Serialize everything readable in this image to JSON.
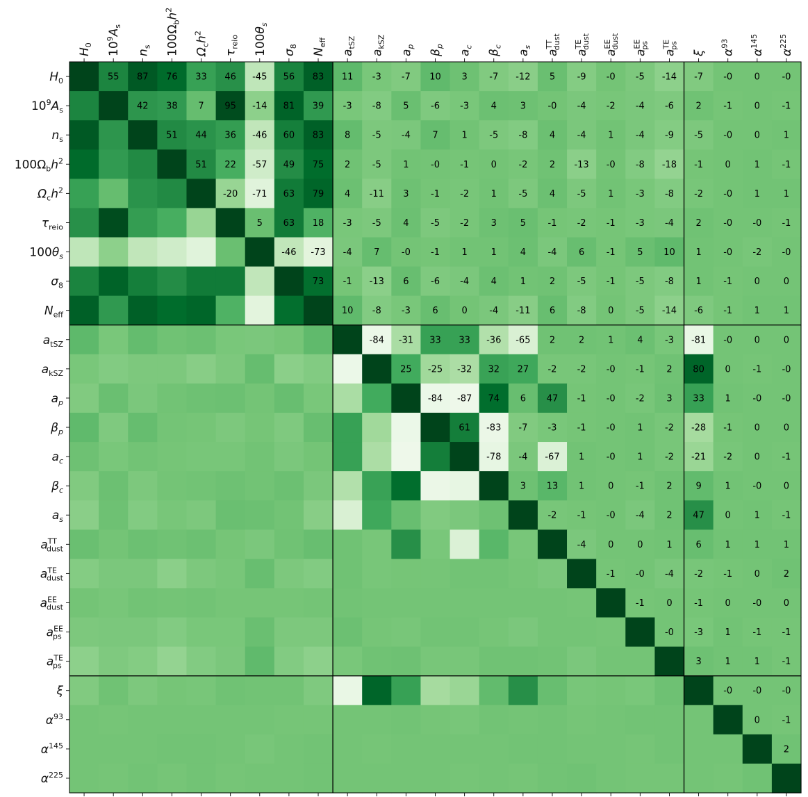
{
  "chart_data": {
    "type": "heatmap",
    "title": "",
    "xlabel": "",
    "ylabel": "",
    "colormap": "Greens",
    "colors": {
      "max": "#00441b",
      "mid": "#6cc271",
      "min": "#f2faf0",
      "divider": "#000000"
    },
    "group_boundaries_after_index": [
      8,
      20
    ],
    "parameters": [
      {
        "base": "H",
        "sub": "0",
        "sup": ""
      },
      {
        "base": "10",
        "sub": "s",
        "sup": "9",
        "tail": "A"
      },
      {
        "base": "n",
        "sub": "s",
        "sup": ""
      },
      {
        "base": "100Ω",
        "sub": "b",
        "sup": "2",
        "tail": "h"
      },
      {
        "base": "Ω",
        "sub": "c",
        "sup": "2",
        "tail": "h"
      },
      {
        "base": "τ",
        "sub": "reio",
        "sup": ""
      },
      {
        "base": "100θ",
        "sub": "s",
        "sup": ""
      },
      {
        "base": "σ",
        "sub": "8",
        "sup": ""
      },
      {
        "base": "N",
        "sub": "eff",
        "sup": ""
      },
      {
        "base": "a",
        "sub": "tSZ",
        "sup": ""
      },
      {
        "base": "a",
        "sub": "kSZ",
        "sup": ""
      },
      {
        "base": "a",
        "sub": "p",
        "sup": ""
      },
      {
        "base": "β",
        "sub": "p",
        "sup": ""
      },
      {
        "base": "a",
        "sub": "c",
        "sup": ""
      },
      {
        "base": "β",
        "sub": "c",
        "sup": ""
      },
      {
        "base": "a",
        "sub": "s",
        "sup": ""
      },
      {
        "base": "a",
        "sub": "dust",
        "sup": "TT"
      },
      {
        "base": "a",
        "sub": "dust",
        "sup": "TE"
      },
      {
        "base": "a",
        "sub": "dust",
        "sup": "EE"
      },
      {
        "base": "a",
        "sub": "ps",
        "sup": "EE"
      },
      {
        "base": "a",
        "sub": "ps",
        "sup": "TE"
      },
      {
        "base": "ξ",
        "sub": "",
        "sup": ""
      },
      {
        "base": "α",
        "sub": "",
        "sup": "93"
      },
      {
        "base": "α",
        "sub": "",
        "sup": "145"
      },
      {
        "base": "α",
        "sub": "",
        "sup": "225"
      }
    ],
    "upper_labels": [
      [
        null,
        55,
        87,
        76,
        33,
        46,
        -45,
        56,
        83,
        11,
        -3,
        -7,
        10,
        3,
        -7,
        -12,
        5,
        -9,
        0,
        -5,
        -14,
        -7,
        0,
        0,
        0
      ],
      [
        null,
        null,
        42,
        38,
        7,
        95,
        -14,
        81,
        39,
        -3,
        -8,
        5,
        -6,
        -3,
        4,
        3,
        0,
        -4,
        -2,
        -4,
        -6,
        2,
        -1,
        0,
        -1
      ],
      [
        null,
        null,
        null,
        51,
        44,
        36,
        -46,
        60,
        83,
        8,
        -5,
        -4,
        7,
        1,
        -5,
        -8,
        4,
        -4,
        1,
        -4,
        -9,
        -5,
        0,
        0,
        1
      ],
      [
        null,
        null,
        null,
        null,
        51,
        22,
        -57,
        49,
        75,
        2,
        -5,
        1,
        0,
        -1,
        0,
        -2,
        2,
        -13,
        0,
        -8,
        -18,
        -1,
        0,
        1,
        -1
      ],
      [
        null,
        null,
        null,
        null,
        null,
        -20,
        -71,
        63,
        79,
        4,
        -11,
        3,
        -1,
        -2,
        1,
        -5,
        4,
        -5,
        1,
        -3,
        -8,
        -2,
        0,
        1,
        1
      ],
      [
        null,
        null,
        null,
        null,
        null,
        null,
        5,
        63,
        18,
        -3,
        -5,
        4,
        -5,
        -2,
        3,
        5,
        -1,
        -2,
        -1,
        -3,
        -4,
        2,
        0,
        0,
        -1
      ],
      [
        null,
        null,
        null,
        null,
        null,
        null,
        null,
        -46,
        -73,
        -4,
        7,
        0,
        -1,
        1,
        1,
        4,
        -4,
        6,
        -1,
        5,
        10,
        1,
        0,
        -2,
        0
      ],
      [
        null,
        null,
        null,
        null,
        null,
        null,
        null,
        null,
        73,
        -1,
        -13,
        6,
        -6,
        -4,
        4,
        1,
        2,
        -5,
        -1,
        -5,
        -8,
        1,
        -1,
        0,
        0
      ],
      [
        null,
        null,
        null,
        null,
        null,
        null,
        null,
        null,
        null,
        10,
        -8,
        -3,
        6,
        0,
        -4,
        -11,
        6,
        -8,
        0,
        -5,
        -14,
        -6,
        -1,
        1,
        1
      ],
      [
        null,
        null,
        null,
        null,
        null,
        null,
        null,
        null,
        null,
        null,
        -84,
        -31,
        33,
        33,
        -36,
        -65,
        2,
        2,
        1,
        4,
        -3,
        -81,
        0,
        0,
        0
      ],
      [
        null,
        null,
        null,
        null,
        null,
        null,
        null,
        null,
        null,
        null,
        null,
        25,
        -25,
        -32,
        32,
        27,
        -2,
        -2,
        0,
        -1,
        2,
        80,
        0,
        -1,
        0
      ],
      [
        null,
        null,
        null,
        null,
        null,
        null,
        null,
        null,
        null,
        null,
        null,
        null,
        -84,
        -87,
        74,
        6,
        47,
        -1,
        0,
        -2,
        3,
        33,
        1,
        0,
        0
      ],
      [
        null,
        null,
        null,
        null,
        null,
        null,
        null,
        null,
        null,
        null,
        null,
        null,
        null,
        61,
        -83,
        -7,
        -3,
        -1,
        0,
        1,
        -2,
        -28,
        -1,
        0,
        0
      ],
      [
        null,
        null,
        null,
        null,
        null,
        null,
        null,
        null,
        null,
        null,
        null,
        null,
        null,
        null,
        -78,
        -4,
        -67,
        1,
        0,
        1,
        -2,
        -21,
        -2,
        0,
        -1
      ],
      [
        null,
        null,
        null,
        null,
        null,
        null,
        null,
        null,
        null,
        null,
        null,
        null,
        null,
        null,
        null,
        3,
        13,
        1,
        0,
        -1,
        2,
        9,
        1,
        0,
        0
      ],
      [
        null,
        null,
        null,
        null,
        null,
        null,
        null,
        null,
        null,
        null,
        null,
        null,
        null,
        null,
        null,
        null,
        -2,
        -1,
        0,
        -4,
        2,
        47,
        0,
        1,
        -1
      ],
      [
        null,
        null,
        null,
        null,
        null,
        null,
        null,
        null,
        null,
        null,
        null,
        null,
        null,
        null,
        null,
        null,
        null,
        -4,
        0,
        0,
        1,
        6,
        1,
        1,
        1
      ],
      [
        null,
        null,
        null,
        null,
        null,
        null,
        null,
        null,
        null,
        null,
        null,
        null,
        null,
        null,
        null,
        null,
        null,
        null,
        -1,
        0,
        -4,
        -2,
        -1,
        0,
        2
      ],
      [
        null,
        null,
        null,
        null,
        null,
        null,
        null,
        null,
        null,
        null,
        null,
        null,
        null,
        null,
        null,
        null,
        null,
        null,
        null,
        -1,
        0,
        -1,
        0,
        0,
        0
      ],
      [
        null,
        null,
        null,
        null,
        null,
        null,
        null,
        null,
        null,
        null,
        null,
        null,
        null,
        null,
        null,
        null,
        null,
        null,
        null,
        null,
        0,
        -3,
        1,
        -1,
        -1
      ],
      [
        null,
        null,
        null,
        null,
        null,
        null,
        null,
        null,
        null,
        null,
        null,
        null,
        null,
        null,
        null,
        null,
        null,
        null,
        null,
        null,
        null,
        3,
        1,
        1,
        -1
      ],
      [
        null,
        null,
        null,
        null,
        null,
        null,
        null,
        null,
        null,
        null,
        null,
        null,
        null,
        null,
        null,
        null,
        null,
        null,
        null,
        null,
        null,
        null,
        0,
        0,
        0
      ],
      [
        null,
        null,
        null,
        null,
        null,
        null,
        null,
        null,
        null,
        null,
        null,
        null,
        null,
        null,
        null,
        null,
        null,
        null,
        null,
        null,
        null,
        null,
        null,
        0,
        -1
      ],
      [
        null,
        null,
        null,
        null,
        null,
        null,
        null,
        null,
        null,
        null,
        null,
        null,
        null,
        null,
        null,
        null,
        null,
        null,
        null,
        null,
        null,
        null,
        null,
        null,
        2
      ],
      [
        null,
        null,
        null,
        null,
        null,
        null,
        null,
        null,
        null,
        null,
        null,
        null,
        null,
        null,
        null,
        null,
        null,
        null,
        null,
        null,
        null,
        null,
        null,
        null,
        null
      ]
    ]
  }
}
